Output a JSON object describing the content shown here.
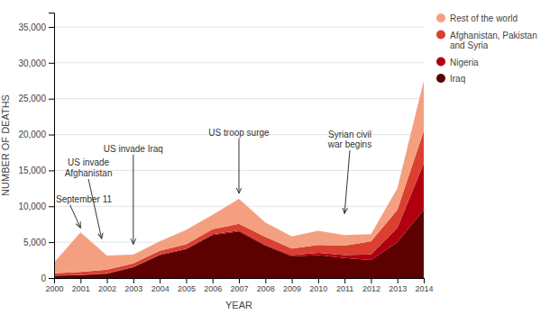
{
  "chart_data": {
    "type": "area",
    "stacked": true,
    "xlabel": "YEAR",
    "ylabel": "NUMBER OF DEATHS",
    "x": [
      2000,
      2001,
      2002,
      2003,
      2004,
      2005,
      2006,
      2007,
      2008,
      2009,
      2010,
      2011,
      2012,
      2013,
      2014
    ],
    "series": [
      {
        "name": "Iraq",
        "color": "#5c0000",
        "values": [
          300,
          400,
          600,
          1500,
          3200,
          4000,
          6000,
          6500,
          4500,
          3000,
          3200,
          2800,
          2500,
          5000,
          9500
        ]
      },
      {
        "name": "Nigeria",
        "color": "#b00010",
        "values": [
          50,
          50,
          50,
          50,
          100,
          100,
          100,
          150,
          150,
          200,
          300,
          400,
          800,
          2000,
          6500
        ]
      },
      {
        "name": "Afghanistan, Pakistan\nand Syria",
        "color": "#d94030",
        "values": [
          300,
          400,
          500,
          500,
          500,
          600,
          700,
          900,
          1100,
          900,
          1100,
          1300,
          1800,
          2500,
          4500
        ]
      },
      {
        "name": "Rest of the world",
        "color": "#f4a080",
        "values": [
          1500,
          5500,
          2000,
          1200,
          1300,
          2000,
          2000,
          3500,
          2000,
          1700,
          2000,
          1500,
          1000,
          3000,
          7000
        ]
      }
    ],
    "xlim": [
      2000,
      2014
    ],
    "xticks": [
      2000,
      2001,
      2002,
      2003,
      2004,
      2005,
      2006,
      2007,
      2008,
      2009,
      2010,
      2011,
      2012,
      2013,
      2014
    ],
    "ylim": [
      0,
      37000
    ],
    "yticks": [
      0,
      {
        "value": 5000,
        "label": "5,000"
      },
      {
        "value": 10000,
        "label": "10,000"
      },
      {
        "value": 15000,
        "label": "15,000"
      },
      {
        "value": 20000,
        "label": "20,000"
      },
      {
        "value": 25000,
        "label": "25,000"
      },
      {
        "value": 30000,
        "label": "30,000"
      },
      {
        "value": 35000,
        "label": "35,000"
      }
    ],
    "grid": true,
    "legend": "upper right",
    "annotations": [
      {
        "text": "September 11",
        "text_x": 2000.6,
        "text_y": 10200,
        "x": 2001.0,
        "y": 7000
      },
      {
        "text": "US invade\nAfghanistan",
        "text_x": 2001.3,
        "text_y": 13800,
        "x": 2001.8,
        "y": 5500
      },
      {
        "text": "US invade Iraq",
        "text_x": 2003.0,
        "text_y": 17200,
        "x": 2003.0,
        "y": 4700
      },
      {
        "text": "US troop surge",
        "text_x": 2007.0,
        "text_y": 19500,
        "x": 2007.0,
        "y": 11800
      },
      {
        "text": "Syrian civil\nwar begins",
        "text_x": 2011.2,
        "text_y": 17800,
        "x": 2011.0,
        "y": 9000
      }
    ]
  }
}
